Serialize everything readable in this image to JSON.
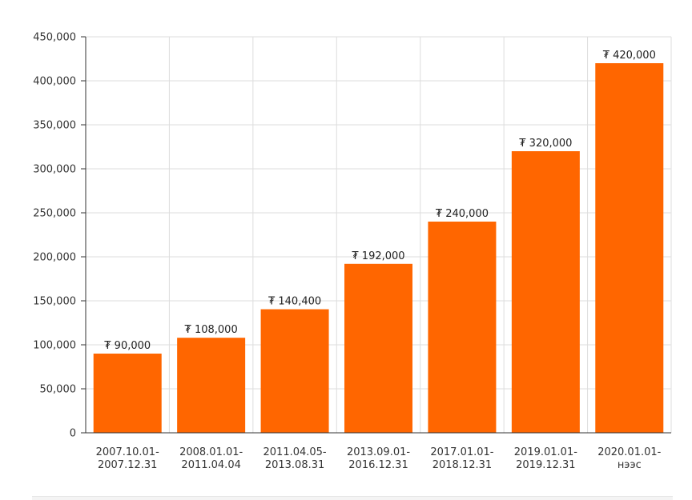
{
  "chart_data": {
    "type": "bar",
    "categories": [
      [
        "2007.10.01-",
        "2007.12.31"
      ],
      [
        "2008.01.01-",
        "2011.04.04"
      ],
      [
        "2011.04.05-",
        "2013.08.31"
      ],
      [
        "2013.09.01-",
        "2016.12.31"
      ],
      [
        "2017.01.01-",
        "2018.12.31"
      ],
      [
        "2019.01.01-",
        "2019.12.31"
      ],
      [
        "2020.01.01-",
        "нээс"
      ]
    ],
    "values": [
      90000,
      108000,
      140400,
      192000,
      240000,
      320000,
      420000
    ],
    "data_labels": [
      "₮ 90,000",
      "₮ 108,000",
      "₮ 140,400",
      "₮ 192,000",
      "₮ 240,000",
      "₮ 320,000",
      "₮ 420,000"
    ],
    "y_ticks": [
      "0",
      "50,000",
      "100,000",
      "150,000",
      "200,000",
      "250,000",
      "300,000",
      "350,000",
      "400,000",
      "450,000"
    ],
    "ylim": [
      0,
      450000
    ],
    "title": "",
    "xlabel": "",
    "ylabel": "",
    "grid": true,
    "legend": "none",
    "colors": {
      "bar": "#ff6600",
      "grid": "#dddddd",
      "axis": "#333333"
    }
  }
}
